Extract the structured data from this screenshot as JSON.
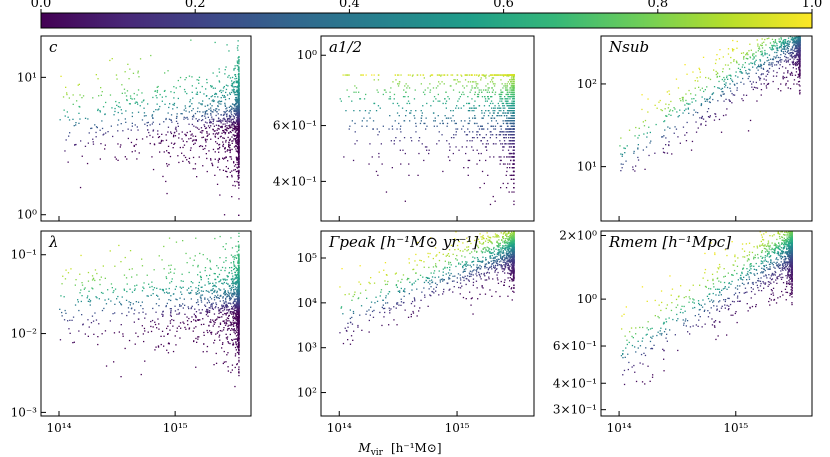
{
  "chart_data": {
    "type": "scatter",
    "figure": {
      "shared_xlabel": "M_vir  [h⁻¹M⊙]",
      "shared_xlabel_parts": {
        "var": "M",
        "sub": "vir",
        "unit": "[h⁻¹M⊙]"
      },
      "x_scale": "log",
      "x_ticks": [
        {
          "value": 100000000000000.0,
          "label": "10¹⁴"
        },
        {
          "value": 1000000000000000.0,
          "label": "10¹⁵"
        }
      ],
      "xlim": [
        70000000000000.0,
        4500000000000000.0
      ]
    },
    "colorbar": {
      "orientation": "horizontal",
      "placement": "top",
      "colormap": "viridis",
      "range": [
        0.0,
        1.0
      ],
      "ticks": [
        0.0,
        0.2,
        0.4,
        0.6,
        0.8,
        1.0
      ],
      "tick_labels": [
        "0.0",
        "0.2",
        "0.4",
        "0.6",
        "0.8",
        "1.0"
      ],
      "stops": [
        "#440154",
        "#482878",
        "#3e4989",
        "#31688e",
        "#26828e",
        "#1f9e89",
        "#35b779",
        "#6ece58",
        "#b5de2b",
        "#fde725"
      ]
    },
    "panels": [
      {
        "id": "c",
        "label": "c",
        "label_html": "c",
        "y_scale": "log",
        "ylim": [
          0.9,
          20
        ],
        "y_ticks": [
          {
            "value": 1,
            "label": "10⁰"
          },
          {
            "value": 10,
            "label": "10¹"
          }
        ],
        "y_typical": 5,
        "y_spread_dex": 0.18,
        "slope": 0.0,
        "color_trend": -0.5,
        "x_max": 3500000000000000.0,
        "floor": 1.0,
        "n_points": 1800
      },
      {
        "id": "a_half",
        "label": "a1/2",
        "y_scale": "log",
        "ylim": [
          0.3,
          1.15
        ],
        "y_ticks": [
          {
            "value": 0.4,
            "label": "4×10⁻¹"
          },
          {
            "value": 0.6,
            "label": "6×10⁻¹"
          },
          {
            "value": 1.0,
            "label": "10⁰"
          }
        ],
        "y_typical": 0.68,
        "y_spread_dex": 0.1,
        "slope": 0.0,
        "color_trend": 0.0,
        "x_max": 3000000000000000.0,
        "quantize": 0.012,
        "y_min": 0.34,
        "y_max": 0.87,
        "n_points": 1800
      },
      {
        "id": "N_sub",
        "label": "Nsub",
        "y_scale": "log",
        "ylim": [
          2.2,
          380
        ],
        "y_ticks": [
          {
            "value": 10,
            "label": "10¹"
          },
          {
            "value": 100,
            "label": "10²"
          }
        ],
        "y_typical": 14,
        "y_spread_dex": 0.22,
        "slope": 0.95,
        "color_trend": 0.0,
        "x_max": 3500000000000000.0,
        "n_points": 1800
      },
      {
        "id": "lambda",
        "label": "λ",
        "y_scale": "log",
        "ylim": [
          0.0009,
          0.2
        ],
        "y_ticks": [
          {
            "value": 0.001,
            "label": "10⁻³"
          },
          {
            "value": 0.01,
            "label": "10⁻²"
          },
          {
            "value": 0.1,
            "label": "10⁻¹"
          }
        ],
        "y_typical": 0.025,
        "y_spread_dex": 0.3,
        "slope": 0.0,
        "color_trend": -0.4,
        "x_max": 3500000000000000.0,
        "n_points": 1800
      },
      {
        "id": "Gamma_peak",
        "label": "Γpeak  [h⁻¹M⊙ yr⁻¹]",
        "y_scale": "log",
        "ylim": [
          30,
          400000
        ],
        "y_ticks": [
          {
            "value": 100,
            "label": "10²"
          },
          {
            "value": 1000,
            "label": "10³"
          },
          {
            "value": 10000,
            "label": "10⁴"
          },
          {
            "value": 100000,
            "label": "10⁵"
          }
        ],
        "y_typical": 6000,
        "y_spread_dex": 0.35,
        "slope": 1.0,
        "color_trend": 0.0,
        "x_max": 3000000000000000.0,
        "n_points": 1800
      },
      {
        "id": "R_mem",
        "label": "Rmem  [h⁻¹Mpc]",
        "y_scale": "log",
        "ylim": [
          0.28,
          2.1
        ],
        "y_ticks": [
          {
            "value": 0.3,
            "label": "3×10⁻¹"
          },
          {
            "value": 0.4,
            "label": "4×10⁻¹"
          },
          {
            "value": 0.6,
            "label": "6×10⁻¹"
          },
          {
            "value": 1.0,
            "label": "10⁰"
          },
          {
            "value": 2.0,
            "label": "2×10⁰"
          }
        ],
        "y_typical": 0.55,
        "y_spread_dex": 0.09,
        "slope": 0.35,
        "color_trend": 0.0,
        "x_max": 3000000000000000.0,
        "n_points": 1800
      }
    ]
  }
}
